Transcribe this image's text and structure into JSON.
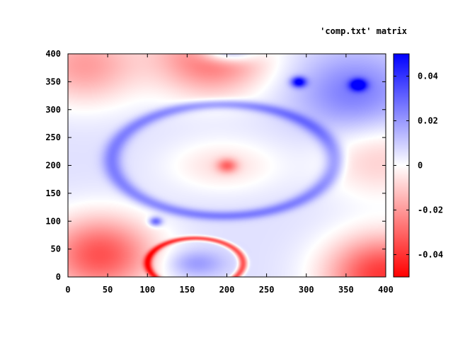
{
  "chart_data": {
    "type": "heatmap",
    "title": "'comp.txt' matrix",
    "xlabel": "",
    "ylabel": "",
    "xlim": [
      0,
      400
    ],
    "ylim": [
      400,
      0
    ],
    "x_ticks": [
      "0",
      "50",
      "100",
      "150",
      "200",
      "250",
      "300",
      "350",
      "400"
    ],
    "x_tick_values": [
      0,
      50,
      100,
      150,
      200,
      250,
      300,
      350,
      400
    ],
    "y_ticks": [
      "0",
      "50",
      "100",
      "150",
      "200",
      "250",
      "300",
      "350",
      "400"
    ],
    "y_tick_values": [
      0,
      50,
      100,
      150,
      200,
      250,
      300,
      350,
      400
    ],
    "colorbar": {
      "range": [
        -0.05,
        0.05
      ],
      "ticks": [
        "0.04",
        "0.02",
        "0",
        "-0.02",
        "-0.04"
      ],
      "tick_values": [
        0.04,
        0.02,
        0,
        -0.02,
        -0.04
      ],
      "colors": {
        "low": "#ff0000",
        "mid": "#ffffff",
        "high": "#0000ff"
      }
    },
    "features": [
      {
        "kind": "ring",
        "cx": 195,
        "cy": 210,
        "rx": 140,
        "ry": 100,
        "value": 0.02
      },
      {
        "kind": "blob",
        "cx": 195,
        "cy": 200,
        "rx": 90,
        "ry": 60,
        "value": -0.012
      },
      {
        "kind": "spot",
        "cx": 200,
        "cy": 200,
        "r": 12,
        "value": -0.025
      },
      {
        "kind": "region",
        "name": "top-left",
        "cx": 40,
        "cy": 40,
        "value": -0.04
      },
      {
        "kind": "region",
        "name": "top-right",
        "cx": 395,
        "cy": 5,
        "value": -0.045
      },
      {
        "kind": "ring",
        "cx": 160,
        "cy": 25,
        "rx": 60,
        "ry": 45,
        "value": -0.04
      },
      {
        "kind": "blob",
        "cx": 160,
        "cy": 25,
        "rx": 45,
        "ry": 30,
        "value": 0.015
      },
      {
        "kind": "spot",
        "cx": 110,
        "cy": 100,
        "r": 8,
        "value": 0.03
      },
      {
        "kind": "spot",
        "cx": 290,
        "cy": 350,
        "r": 9,
        "value": 0.045
      },
      {
        "kind": "spot",
        "cx": 365,
        "cy": 345,
        "r": 10,
        "value": 0.045
      },
      {
        "kind": "region",
        "name": "bottom-right",
        "cx": 360,
        "cy": 330,
        "value": 0.02
      },
      {
        "kind": "region",
        "name": "bottom-center",
        "cx": 180,
        "cy": 395,
        "value": -0.035
      },
      {
        "kind": "blob",
        "cx": 200,
        "cy": 405,
        "rx": 45,
        "ry": 25,
        "value": 0.035
      },
      {
        "kind": "region",
        "name": "bottom-left",
        "cx": 20,
        "cy": 380,
        "value": -0.025
      },
      {
        "kind": "region",
        "name": "right-middle",
        "cx": 390,
        "cy": 210,
        "value": -0.015
      }
    ]
  }
}
